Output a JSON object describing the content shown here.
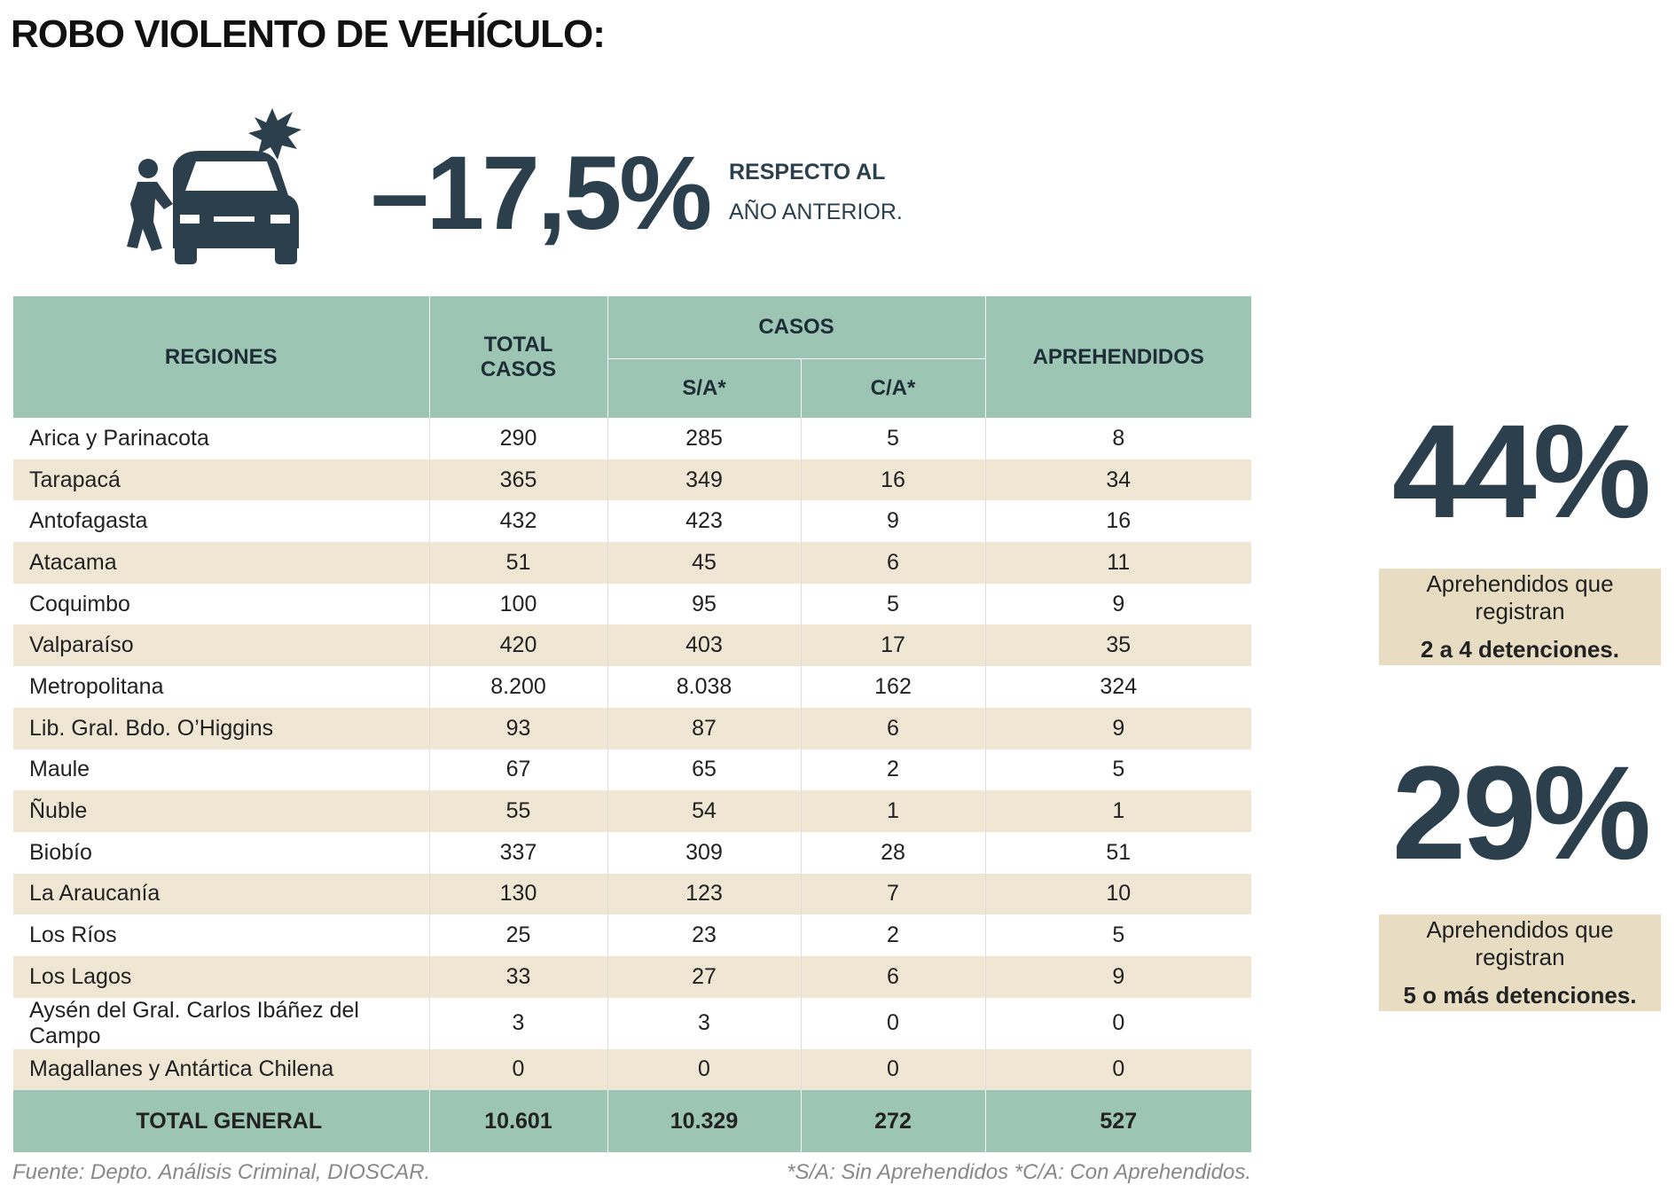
{
  "title": "ROBO VIOLENTO DE VEHÍCULO:",
  "change": {
    "value": "–17,5%",
    "line1": "RESPECTO AL",
    "line2": "AÑO ANTERIOR."
  },
  "table": {
    "headers": {
      "regiones": "REGIONES",
      "total": "TOTAL CASOS",
      "casos": "CASOS",
      "sa": "S/A*",
      "ca": "C/A*",
      "aprehendidos": "APREHENDIDOS"
    },
    "rows": [
      [
        "Arica y Parinacota",
        "290",
        "285",
        "5",
        "8"
      ],
      [
        "Tarapacá",
        "365",
        "349",
        "16",
        "34"
      ],
      [
        "Antofagasta",
        "432",
        "423",
        "9",
        "16"
      ],
      [
        "Atacama",
        "51",
        "45",
        "6",
        "11"
      ],
      [
        "Coquimbo",
        "100",
        "95",
        "5",
        "9"
      ],
      [
        "Valparaíso",
        "420",
        "403",
        "17",
        "35"
      ],
      [
        "Metropolitana",
        "8.200",
        "8.038",
        "162",
        "324"
      ],
      [
        "Lib. Gral. Bdo. O’Higgins",
        "93",
        "87",
        "6",
        "9"
      ],
      [
        "Maule",
        "67",
        "65",
        "2",
        "5"
      ],
      [
        "Ñuble",
        "55",
        "54",
        "1",
        "1"
      ],
      [
        "Biobío",
        "337",
        "309",
        "28",
        "51"
      ],
      [
        "La Araucanía",
        "130",
        "123",
        "7",
        "10"
      ],
      [
        "Los Ríos",
        "25",
        "23",
        "2",
        "5"
      ],
      [
        "Los Lagos",
        "33",
        "27",
        "6",
        "9"
      ],
      [
        "Aysén del Gral. Carlos Ibáñez del Campo",
        "3",
        "3",
        "0",
        "0"
      ],
      [
        "Magallanes y Antártica Chilena",
        "0",
        "0",
        "0",
        "0"
      ]
    ],
    "total": [
      "TOTAL GENERAL",
      "10.601",
      "10.329",
      "272",
      "527"
    ]
  },
  "stats": [
    {
      "value": "44%",
      "text": "Aprehendidos que registran",
      "bold": "2 a 4 detenciones."
    },
    {
      "value": "29%",
      "text": "Aprehendidos que registran",
      "bold": "5 o más detenciones."
    }
  ],
  "footer": {
    "source": "Fuente: Depto. Análisis Criminal, DIOSCAR.",
    "note": "*S/A: Sin Aprehendidos *C/A: Con Aprehendidos."
  }
}
